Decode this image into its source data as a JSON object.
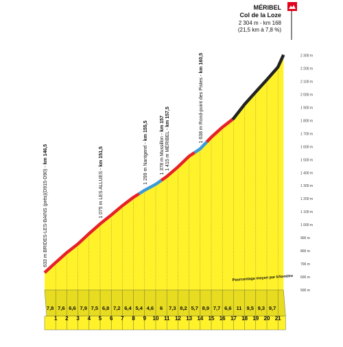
{
  "chart_data": {
    "type": "area",
    "summit": {
      "name_top": "MÉRIBEL",
      "name_main": "Col de la Loze",
      "info": "2 304 m - km 168",
      "stats": "(21,5 km à 7,8 %)"
    },
    "y_axis": {
      "unit": "m",
      "ylim": [
        500,
        2300
      ],
      "ticks": [
        "500 m",
        "600 m",
        "700 m",
        "800 m",
        "900 m",
        "1 000 m",
        "1 100 m",
        "1 200 m",
        "1 300 m",
        "1 400 m",
        "1 500 m",
        "1 600 m",
        "1 700 m",
        "1 800 m",
        "1 900 m",
        "2 000 m",
        "2 100 m",
        "2 200 m",
        "2 300 m"
      ]
    },
    "x_axis": {
      "km_labels": [
        "1",
        "2",
        "3",
        "4",
        "5",
        "6",
        "7",
        "8",
        "9",
        "10",
        "11",
        "12",
        "13",
        "14",
        "15",
        "16",
        "17",
        "18",
        "19",
        "20",
        "21"
      ],
      "xlim": [
        0,
        21.5
      ]
    },
    "gradients": [
      7.8,
      7.6,
      6.6,
      7.9,
      7.5,
      6.8,
      7.2,
      6.4,
      5.4,
      4.6,
      6,
      7.3,
      8.2,
      5.7,
      8.9,
      7.7,
      6.6,
      11,
      9.5,
      9.3,
      9.7
    ],
    "profile": [
      {
        "km": 0,
        "alt": 633
      },
      {
        "km": 1,
        "alt": 711
      },
      {
        "km": 2,
        "alt": 787
      },
      {
        "km": 3,
        "alt": 853
      },
      {
        "km": 4,
        "alt": 932
      },
      {
        "km": 5,
        "alt": 1007
      },
      {
        "km": 6,
        "alt": 1075
      },
      {
        "km": 7,
        "alt": 1147
      },
      {
        "km": 8,
        "alt": 1211
      },
      {
        "km": 9,
        "alt": 1265
      },
      {
        "km": 10,
        "alt": 1311
      },
      {
        "km": 11,
        "alt": 1371
      },
      {
        "km": 12,
        "alt": 1444
      },
      {
        "km": 13,
        "alt": 1526
      },
      {
        "km": 14,
        "alt": 1583
      },
      {
        "km": 15,
        "alt": 1672
      },
      {
        "km": 16,
        "alt": 1749
      },
      {
        "km": 17,
        "alt": 1815
      },
      {
        "km": 18,
        "alt": 1925
      },
      {
        "km": 19,
        "alt": 2020
      },
      {
        "km": 20,
        "alt": 2113
      },
      {
        "km": 21,
        "alt": 2210
      },
      {
        "km": 21.5,
        "alt": 2304
      }
    ],
    "segments": [
      {
        "from_km": 0,
        "to_km": 8.5,
        "surface": "road"
      },
      {
        "from_km": 8.5,
        "to_km": 10.5,
        "surface": "flat-section"
      },
      {
        "from_km": 10.5,
        "to_km": 13.5,
        "surface": "road"
      },
      {
        "from_km": 13.5,
        "to_km": 14.6,
        "surface": "flat-section"
      },
      {
        "from_km": 14.6,
        "to_km": 16.9,
        "surface": "road"
      },
      {
        "from_km": 16.9,
        "to_km": 21.5,
        "surface": "cycle-track"
      }
    ],
    "waypoints": [
      {
        "km": 0,
        "label_plain": "633 m BRIDES-LES-BAINS (près)(D915-D90)  - ",
        "label_bold": "km 146,5"
      },
      {
        "km": 5,
        "label_plain": "1 075 m LES ALLUES - ",
        "label_bold": "km 151,5"
      },
      {
        "km": 9,
        "label_plain": "1 299 m Nantgerel - ",
        "label_bold": "km 155,5"
      },
      {
        "km": 10.5,
        "label_plain": "1 378 m Mussillon - ",
        "label_bold": "km 157"
      },
      {
        "km": 11,
        "label_plain": "1 415 m MÉRIBEL - ",
        "label_bold": "km 157,5"
      },
      {
        "km": 14,
        "label_plain": "1 638 m Rond-point des Pistes - ",
        "label_bold": "km 160,5"
      }
    ],
    "annotation": "Pourcentage moyen par kilomètre",
    "colors": {
      "fill": "#fff22a",
      "road": "#e62129",
      "flat_section": "#3d9ad6",
      "cycle_track": "#222222",
      "base_band": "#fff22a",
      "flag": "#e2001a"
    }
  }
}
